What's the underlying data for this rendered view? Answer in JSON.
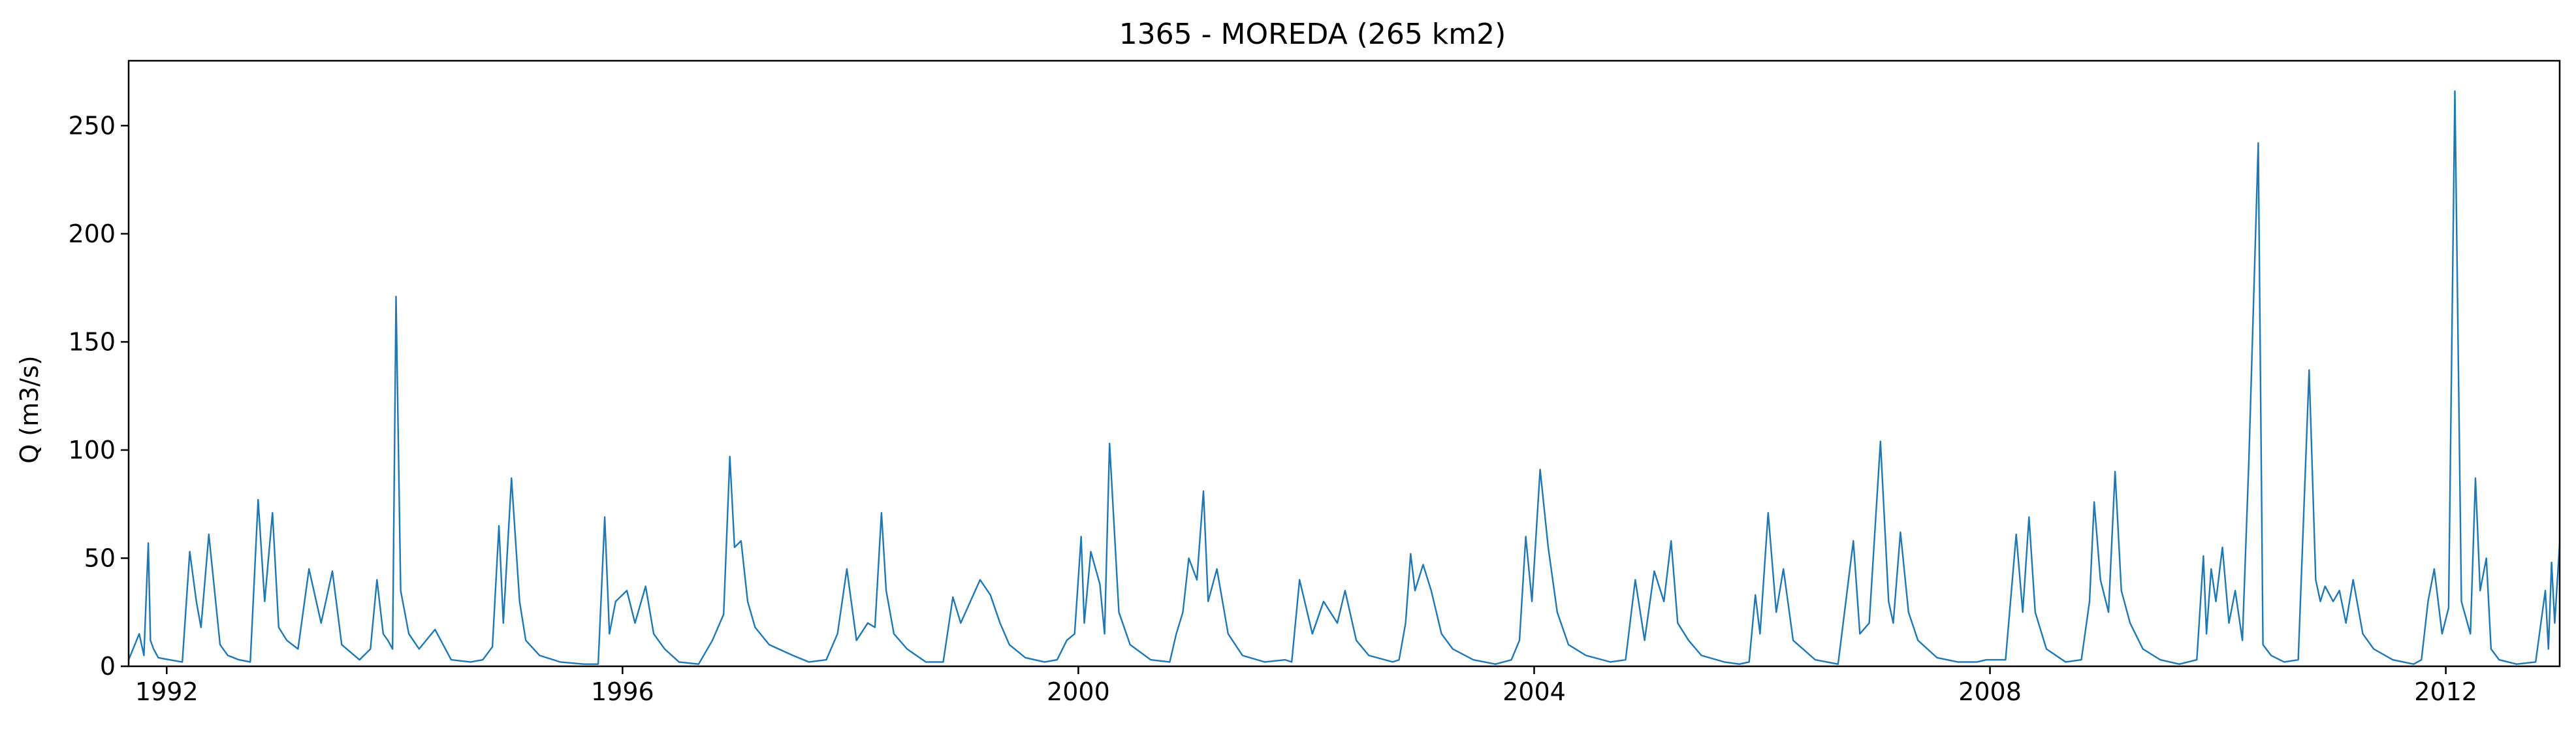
{
  "chart_data": {
    "type": "line",
    "title": "1365 - MOREDA (265 km2)",
    "xlabel": "",
    "ylabel": "Q (m3/s)",
    "x_type": "date",
    "xlim": [
      "1991-09-01",
      "2012-12-31"
    ],
    "ylim": [
      0,
      280
    ],
    "xticks": [
      {
        "value": "1992-01-01",
        "label": "1992"
      },
      {
        "value": "1996-01-01",
        "label": "1996"
      },
      {
        "value": "2000-01-01",
        "label": "2000"
      },
      {
        "value": "2004-01-01",
        "label": "2004"
      },
      {
        "value": "2008-01-01",
        "label": "2008"
      },
      {
        "value": "2012-01-01",
        "label": "2012"
      }
    ],
    "yticks": [
      0,
      50,
      100,
      150,
      200,
      250
    ],
    "grid": false,
    "legend": "none",
    "line_color": "#1f77b4",
    "series": [
      {
        "x": [
          "1991-09-01",
          "1991-10-05",
          "1991-10-20",
          "1991-11-03",
          "1991-11-10",
          "1991-11-20",
          "1991-12-05",
          "1992-01-10",
          "1992-02-20",
          "1992-03-15",
          "1992-04-05",
          "1992-04-20",
          "1992-05-15",
          "1992-06-20",
          "1992-07-15",
          "1992-08-20",
          "1992-09-25",
          "1992-10-20",
          "1992-11-10",
          "1992-12-05",
          "1992-12-25",
          "1993-01-20",
          "1993-02-25",
          "1993-04-01",
          "1993-05-10",
          "1993-06-15",
          "1993-07-15",
          "1993-09-10",
          "1993-10-15",
          "1993-11-05",
          "1993-11-25",
          "1993-12-10",
          "1993-12-25",
          "1994-01-05",
          "1994-01-20",
          "1994-02-15",
          "1994-03-20",
          "1994-05-10",
          "1994-07-01",
          "1994-09-01",
          "1994-10-10",
          "1994-11-10",
          "1994-12-01",
          "1994-12-15",
          "1995-01-10",
          "1995-02-05",
          "1995-02-25",
          "1995-04-10",
          "1995-06-15",
          "1995-08-30",
          "1995-10-15",
          "1995-11-05",
          "1995-11-20",
          "1995-12-10",
          "1996-01-15",
          "1996-02-10",
          "1996-03-15",
          "1996-04-10",
          "1996-05-15",
          "1996-06-30",
          "1996-09-01",
          "1996-10-15",
          "1996-11-20",
          "1996-12-10",
          "1996-12-25",
          "1997-01-15",
          "1997-02-05",
          "1997-03-01",
          "1997-04-15",
          "1997-06-30",
          "1997-08-20",
          "1997-10-15",
          "1997-11-20",
          "1997-12-20",
          "1998-01-20",
          "1998-02-25",
          "1998-03-20",
          "1998-04-10",
          "1998-04-25",
          "1998-05-20",
          "1998-07-01",
          "1998-08-30",
          "1998-10-25",
          "1998-11-25",
          "1998-12-20",
          "1999-01-20",
          "1999-02-20",
          "1999-03-25",
          "1999-04-25",
          "1999-05-25",
          "1999-07-15",
          "1999-09-15",
          "1999-10-25",
          "1999-11-25",
          "1999-12-20",
          "2000-01-10",
          "2000-01-20",
          "2000-02-10",
          "2000-03-10",
          "2000-03-25",
          "2000-04-10",
          "2000-05-10",
          "2000-06-15",
          "2000-08-20",
          "2000-10-20",
          "2000-11-10",
          "2000-12-01",
          "2000-12-20",
          "2001-01-15",
          "2001-02-05",
          "2001-02-20",
          "2001-03-20",
          "2001-04-25",
          "2001-06-10",
          "2001-08-20",
          "2001-10-25",
          "2001-11-15",
          "2001-12-10",
          "2002-01-20",
          "2002-02-25",
          "2002-04-10",
          "2002-05-05",
          "2002-06-10",
          "2002-07-20",
          "2002-10-05",
          "2002-10-25",
          "2002-11-15",
          "2002-12-01",
          "2002-12-15",
          "2003-01-10",
          "2003-02-05",
          "2003-03-10",
          "2003-04-15",
          "2003-06-20",
          "2003-08-30",
          "2003-10-20",
          "2003-11-15",
          "2003-12-05",
          "2003-12-25",
          "2004-01-20",
          "2004-02-15",
          "2004-03-15",
          "2004-04-20",
          "2004-06-15",
          "2004-09-01",
          "2004-10-20",
          "2004-11-20",
          "2004-12-20",
          "2005-01-20",
          "2005-02-20",
          "2005-03-15",
          "2005-04-05",
          "2005-05-10",
          "2005-06-20",
          "2005-09-01",
          "2005-10-20",
          "2005-11-20",
          "2005-12-10",
          "2005-12-25",
          "2006-01-20",
          "2006-02-15",
          "2006-03-10",
          "2006-04-10",
          "2006-06-20",
          "2006-09-01",
          "2006-10-20",
          "2006-11-10",
          "2006-12-10",
          "2007-01-15",
          "2007-02-10",
          "2007-02-25",
          "2007-03-20",
          "2007-04-15",
          "2007-05-15",
          "2007-07-15",
          "2007-09-20",
          "2007-11-20",
          "2007-12-20",
          "2008-02-20",
          "2008-03-25",
          "2008-04-15",
          "2008-05-05",
          "2008-05-25",
          "2008-06-30",
          "2008-08-30",
          "2008-10-20",
          "2008-11-15",
          "2008-11-30",
          "2008-12-20",
          "2009-01-15",
          "2009-02-05",
          "2009-02-25",
          "2009-03-25",
          "2009-05-05",
          "2009-06-30",
          "2009-08-30",
          "2009-10-25",
          "2009-11-15",
          "2009-11-25",
          "2009-12-10",
          "2009-12-25",
          "2010-01-15",
          "2010-02-05",
          "2010-02-25",
          "2010-03-20",
          "2010-04-10",
          "2010-05-10",
          "2010-05-25",
          "2010-06-20",
          "2010-08-01",
          "2010-09-15",
          "2010-10-20",
          "2010-11-10",
          "2010-11-25",
          "2010-12-10",
          "2011-01-05",
          "2011-01-25",
          "2011-02-15",
          "2011-03-10",
          "2011-04-10",
          "2011-05-15",
          "2011-07-15",
          "2011-09-20",
          "2011-10-15",
          "2011-11-05",
          "2011-11-25",
          "2011-12-20",
          "2012-01-10",
          "2012-01-30",
          "2012-02-20",
          "2012-03-20",
          "2012-04-05",
          "2012-04-20",
          "2012-05-10",
          "2012-05-25",
          "2012-06-20",
          "2012-08-15",
          "2012-10-15",
          "2012-11-15",
          "2012-11-25",
          "2012-12-05",
          "2012-12-15",
          "2012-12-31"
        ],
        "y": [
          3,
          15,
          5,
          57,
          12,
          8,
          4,
          3,
          2,
          53,
          30,
          18,
          61,
          10,
          5,
          3,
          2,
          77,
          30,
          71,
          18,
          12,
          8,
          45,
          20,
          44,
          10,
          3,
          8,
          40,
          15,
          12,
          8,
          171,
          35,
          15,
          8,
          17,
          3,
          2,
          3,
          9,
          65,
          20,
          87,
          30,
          12,
          5,
          2,
          1,
          1,
          69,
          15,
          30,
          35,
          20,
          37,
          15,
          8,
          2,
          1,
          12,
          24,
          97,
          55,
          58,
          30,
          18,
          10,
          5,
          2,
          3,
          15,
          45,
          12,
          20,
          18,
          71,
          35,
          15,
          8,
          2,
          2,
          32,
          20,
          30,
          40,
          33,
          20,
          10,
          4,
          2,
          3,
          12,
          15,
          60,
          20,
          53,
          38,
          15,
          103,
          25,
          10,
          3,
          2,
          15,
          25,
          50,
          40,
          81,
          30,
          45,
          15,
          5,
          2,
          3,
          2,
          40,
          15,
          30,
          20,
          35,
          12,
          5,
          2,
          3,
          20,
          52,
          35,
          47,
          35,
          15,
          8,
          3,
          1,
          3,
          12,
          60,
          30,
          91,
          55,
          25,
          10,
          5,
          2,
          3,
          40,
          12,
          44,
          30,
          58,
          20,
          12,
          5,
          2,
          1,
          2,
          33,
          15,
          71,
          25,
          45,
          12,
          3,
          1,
          58,
          15,
          20,
          104,
          30,
          20,
          62,
          25,
          12,
          4,
          2,
          2,
          3,
          3,
          61,
          25,
          69,
          25,
          8,
          2,
          3,
          30,
          76,
          40,
          25,
          90,
          35,
          20,
          8,
          3,
          1,
          3,
          51,
          15,
          45,
          30,
          55,
          20,
          35,
          12,
          96,
          242,
          10,
          5,
          2,
          3,
          137,
          40,
          30,
          37,
          30,
          35,
          20,
          40,
          15,
          8,
          3,
          1,
          3,
          30,
          45,
          15,
          27,
          266,
          30,
          15,
          87,
          35,
          50,
          8,
          3,
          1,
          2,
          35,
          8,
          48,
          20,
          57
        ]
      }
    ]
  }
}
